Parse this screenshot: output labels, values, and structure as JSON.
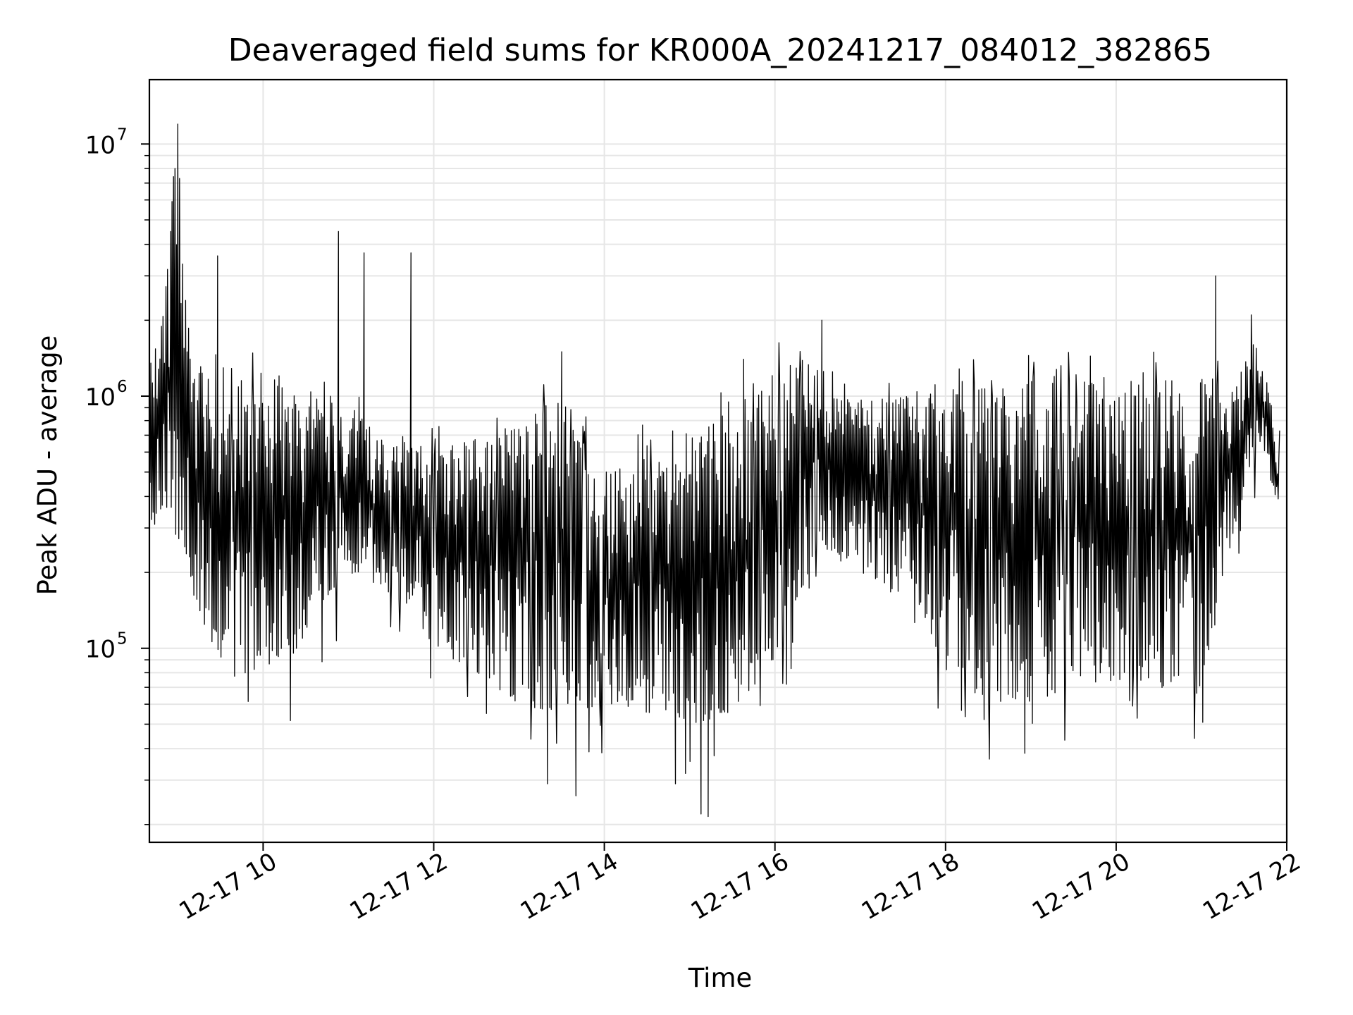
{
  "chart_data": {
    "type": "line",
    "title": "Deaveraged field sums for KR000A_20241217_084012_382865",
    "xlabel": "Time",
    "ylabel": "Peak ADU - average",
    "yscale": "log",
    "grid": true,
    "legend": "none",
    "line_color": "#000000",
    "grid_color": "#e6e6e6",
    "xlim": [
      "2024-12-17 08:40",
      "2024-12-17 22:00"
    ],
    "ylim": [
      17000,
      18000000
    ],
    "x_ticks": [
      "2024-12-17 10:00",
      "2024-12-17 12:00",
      "2024-12-17 14:00",
      "2024-12-17 16:00",
      "2024-12-17 18:00",
      "2024-12-17 20:00",
      "2024-12-17 22:00"
    ],
    "x_tick_labels": [
      "12-17 10",
      "12-17 12",
      "12-17 14",
      "12-17 16",
      "12-17 18",
      "12-17 20",
      "12-17 22"
    ],
    "y_ticks": [
      {
        "value": 100000,
        "base": "10",
        "exp": "5"
      },
      {
        "value": 1000000,
        "base": "10",
        "exp": "6"
      },
      {
        "value": 10000000,
        "base": "10",
        "exp": "7"
      }
    ],
    "series": [
      {
        "name": "",
        "x": [
          "2024-12-17 08:40",
          "2024-12-17 08:50",
          "2024-12-17 09:00",
          "2024-12-17 09:10",
          "2024-12-17 09:20",
          "2024-12-17 09:30",
          "2024-12-17 09:40",
          "2024-12-17 10:00",
          "2024-12-17 10:20",
          "2024-12-17 10:40",
          "2024-12-17 11:00",
          "2024-12-17 11:20",
          "2024-12-17 11:40",
          "2024-12-17 12:00",
          "2024-12-17 12:30",
          "2024-12-17 13:00",
          "2024-12-17 13:30",
          "2024-12-17 14:00",
          "2024-12-17 14:30",
          "2024-12-17 15:00",
          "2024-12-17 15:30",
          "2024-12-17 16:00",
          "2024-12-17 16:30",
          "2024-12-17 17:00",
          "2024-12-17 17:30",
          "2024-12-17 18:00",
          "2024-12-17 18:30",
          "2024-12-17 19:00",
          "2024-12-17 19:30",
          "2024-12-17 20:00",
          "2024-12-17 20:30",
          "2024-12-17 21:00",
          "2024-12-17 21:20",
          "2024-12-17 21:40",
          "2024-12-17 21:55"
        ],
        "low": [
          230000,
          300000,
          350000,
          170000,
          110000,
          90000,
          75000,
          85000,
          90000,
          150000,
          200000,
          180000,
          150000,
          100000,
          80000,
          60000,
          55000,
          60000,
          55000,
          50000,
          55000,
          90000,
          250000,
          200000,
          150000,
          80000,
          60000,
          60000,
          70000,
          75000,
          70000,
          65000,
          250000,
          700000,
          320000
        ],
        "high": [
          1400000,
          2500000,
          12000000,
          1200000,
          1400000,
          1500000,
          1200000,
          1300000,
          1200000,
          1000000,
          1000000,
          700000,
          700000,
          600000,
          700000,
          800000,
          1000000,
          500000,
          650000,
          700000,
          900000,
          1300000,
          1500000,
          1000000,
          1000000,
          1200000,
          1100000,
          1200000,
          1200000,
          1250000,
          1250000,
          1300000,
          1000000,
          1800000,
          600000
        ],
        "peaks": [
          {
            "x": "2024-12-17 09:00",
            "y": 12000000
          },
          {
            "x": "2024-12-17 08:58",
            "y": 8000000
          },
          {
            "x": "2024-12-17 08:55",
            "y": 4500000
          },
          {
            "x": "2024-12-17 09:28",
            "y": 3600000
          },
          {
            "x": "2024-12-17 10:53",
            "y": 4500000
          },
          {
            "x": "2024-12-17 11:11",
            "y": 3700000
          },
          {
            "x": "2024-12-17 11:44",
            "y": 3700000
          },
          {
            "x": "2024-12-17 13:30",
            "y": 1500000
          },
          {
            "x": "2024-12-17 15:38",
            "y": 1400000
          },
          {
            "x": "2024-12-17 16:33",
            "y": 2000000
          },
          {
            "x": "2024-12-17 21:10",
            "y": 3000000
          },
          {
            "x": "2024-12-17 21:35",
            "y": 2100000
          }
        ],
        "dips": [
          {
            "x": "2024-12-17 13:20",
            "y": 29000
          },
          {
            "x": "2024-12-17 13:40",
            "y": 26000
          },
          {
            "x": "2024-12-17 15:08",
            "y": 22000
          },
          {
            "x": "2024-12-17 15:13",
            "y": 21500
          },
          {
            "x": "2024-12-17 14:50",
            "y": 29000
          }
        ]
      }
    ]
  }
}
